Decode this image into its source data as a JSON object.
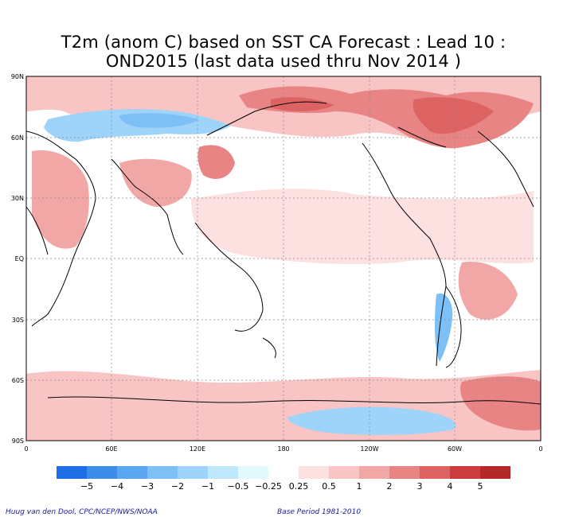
{
  "title_line1": "T2m (anom C) based on SST CA Forecast : Lead 10 :",
  "title_line2": "OND2015 (last data used thru Nov 2014 )",
  "lat_labels": [
    "90N",
    "60N",
    "30N",
    "EQ",
    "30S",
    "60S",
    "90S"
  ],
  "lon_labels": [
    "0",
    "60E",
    "120E",
    "180",
    "120W",
    "60W",
    "0"
  ],
  "colorbar": {
    "colors": [
      "#1e6fe6",
      "#3c8ce8",
      "#5aa6f0",
      "#7dc0f5",
      "#9ed4fa",
      "#c0e8fc",
      "#e2f8fd",
      "#ffffff",
      "#fde0e0",
      "#f9c4c4",
      "#f2a7a7",
      "#e88484",
      "#dd6262",
      "#cc3c3c",
      "#b52828"
    ],
    "labels": [
      "−5",
      "−4",
      "−3",
      "−2",
      "−1",
      "−0.5",
      "−0.25",
      "0.25",
      "0.5",
      "1",
      "2",
      "3",
      "4",
      "5"
    ]
  },
  "credit_left": "Huug van den Dool, CPC/NCEP/NWS/NOAA",
  "credit_right": "Base Period 1981-2010"
}
